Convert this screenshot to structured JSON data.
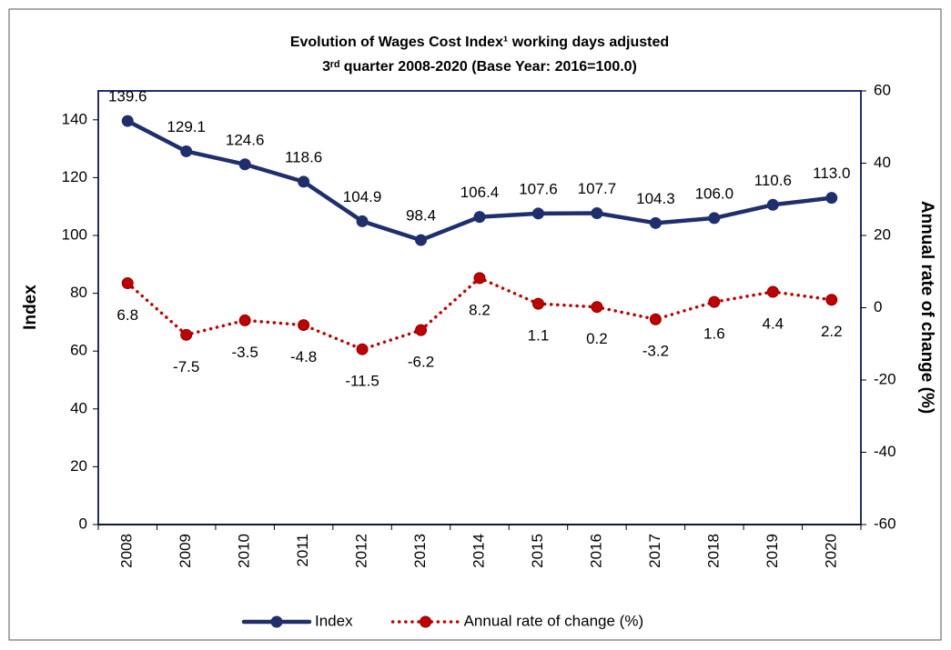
{
  "chart_data": {
    "type": "line",
    "title": "Evolution of Wages Cost Index¹ working days adjusted",
    "subtitle": "3ʳᵈ quarter 2008-2020 (Base Year: 2016=100.0)",
    "y_label": "Index",
    "y2_label": "Annual rate of change (%)",
    "categories": [
      "2008",
      "2009",
      "2010",
      "2011",
      "2012",
      "2013",
      "2014",
      "2015",
      "2016",
      "2017",
      "2018",
      "2019",
      "2020"
    ],
    "series": [
      {
        "name": "Index",
        "color": "#1f2f6e",
        "style": "solid",
        "values": [
          139.6,
          129.1,
          124.6,
          118.6,
          104.9,
          98.4,
          106.4,
          107.6,
          107.7,
          104.3,
          106.0,
          110.6,
          113.0
        ],
        "value_labels": [
          "139.6",
          "129.1",
          "124.6",
          "118.6",
          "104.9",
          "98.4",
          "106.4",
          "107.6",
          "107.7",
          "104.3",
          "106.0",
          "110.6",
          "113.0"
        ]
      },
      {
        "name": "Annual rate of change (%)",
        "color": "#c00000",
        "style": "dotted",
        "axis": "y2",
        "values": [
          6.8,
          -7.5,
          -3.5,
          -4.8,
          -11.5,
          -6.2,
          8.2,
          1.1,
          0.2,
          -3.2,
          1.6,
          4.4,
          2.2
        ]
      }
    ],
    "ylim": [
      0,
      150
    ],
    "yticks": [
      0,
      20,
      40,
      60,
      80,
      100,
      120,
      140
    ],
    "y2lim": [
      -60,
      60
    ],
    "y2ticks": [
      -60,
      -40,
      -20,
      0,
      20,
      40,
      60
    ],
    "grid": false,
    "legend": "bottom"
  }
}
